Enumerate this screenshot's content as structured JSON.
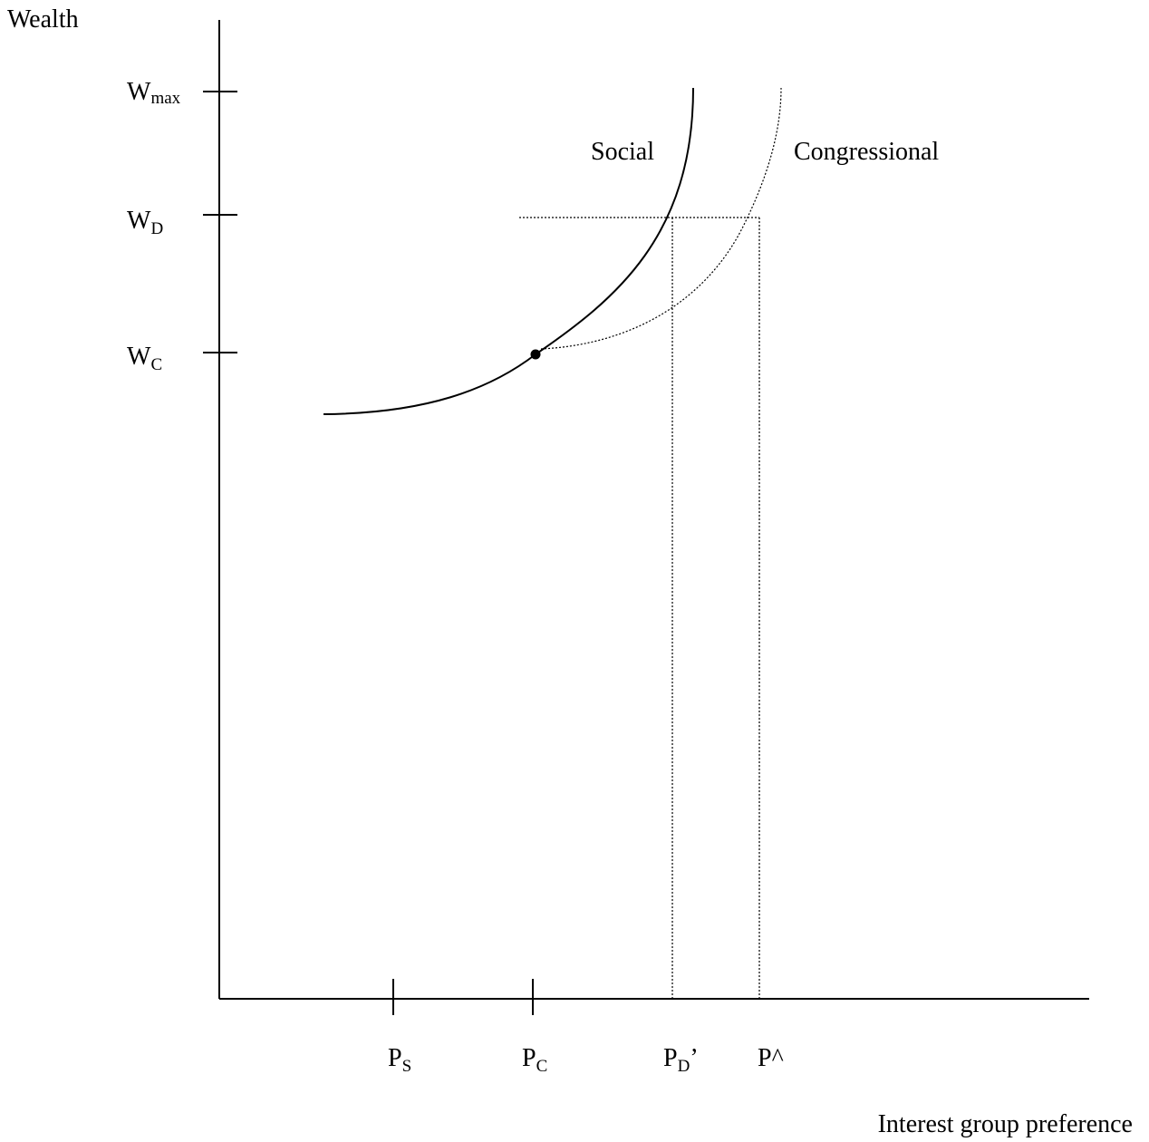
{
  "axes": {
    "y_label": "Wealth",
    "x_label": "Interest group preference"
  },
  "y_ticks": [
    {
      "main": "W",
      "sub": "max"
    },
    {
      "main": "W",
      "sub": "D"
    },
    {
      "main": "W",
      "sub": "C"
    }
  ],
  "x_ticks": [
    {
      "main": "P",
      "sub": "S"
    },
    {
      "main": "P",
      "sub": "C"
    },
    {
      "main": "P",
      "sub": "D",
      "suffix": "’"
    },
    {
      "main": "P^"
    }
  ],
  "curves": [
    {
      "label": "Social"
    },
    {
      "label": "Congressional"
    }
  ]
}
